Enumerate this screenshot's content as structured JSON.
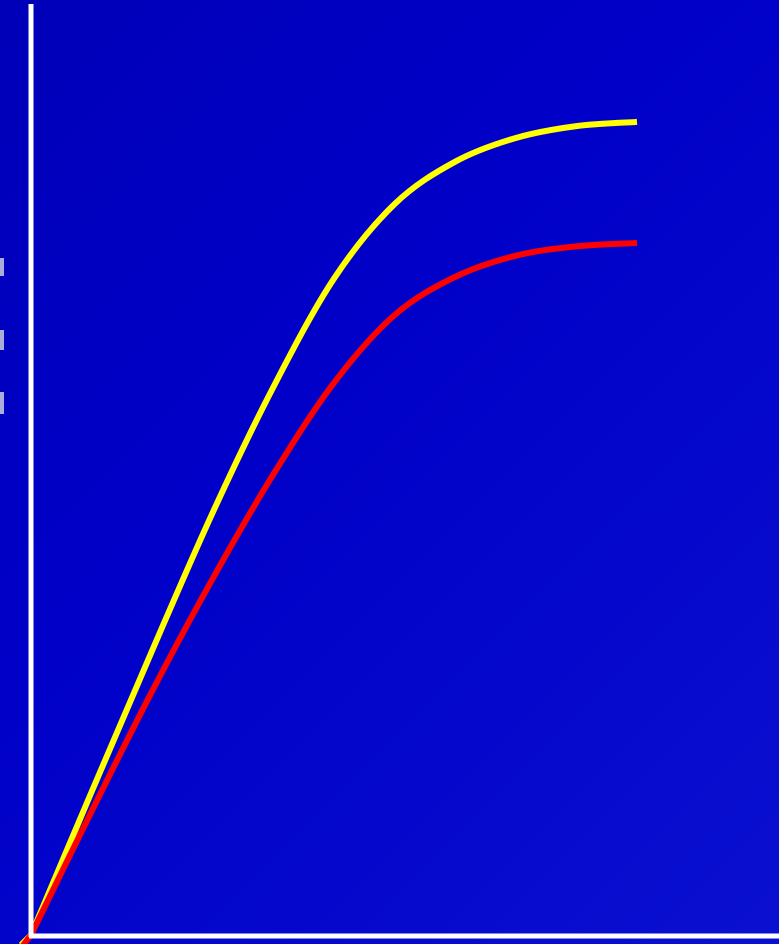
{
  "chart_data": {
    "type": "line",
    "title": "",
    "xlabel": "",
    "ylabel": "",
    "xlim": [
      0,
      10
    ],
    "ylim": [
      0,
      10
    ],
    "grid": false,
    "legend": "none",
    "axis_color": "#ffffff",
    "background_color": "#0000c4",
    "series": [
      {
        "color": "#ffff00",
        "x": [
          0,
          1,
          2,
          3,
          4,
          5,
          6,
          7,
          8,
          9,
          10
        ],
        "y": [
          0,
          1.69,
          3.36,
          4.99,
          6.47,
          7.75,
          8.63,
          9.13,
          9.41,
          9.55,
          9.6
        ]
      },
      {
        "color": "#ff0000",
        "x": [
          0,
          1,
          2,
          3,
          4,
          5,
          6,
          7,
          8,
          9,
          10
        ],
        "y": [
          0,
          1.46,
          2.88,
          4.21,
          5.44,
          6.52,
          7.32,
          7.77,
          8.02,
          8.13,
          8.17
        ]
      }
    ]
  }
}
